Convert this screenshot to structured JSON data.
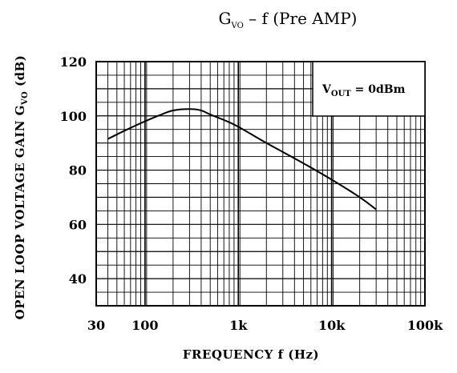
{
  "chart_data": {
    "type": "line",
    "title": {
      "prefix": "G",
      "subscript": "VO",
      "suffix": "  –  f (Pre AMP)"
    },
    "xlabel": "FREQUENCY  f  (Hz)",
    "ylabel": {
      "prefix": "OPEN LOOP VOLTAGE GAIN G",
      "subscript": "VO",
      "suffix": " (dB)"
    },
    "x_scale": "log",
    "xlim": [
      30,
      100000
    ],
    "ylim": [
      30,
      120
    ],
    "x_ticks": [
      {
        "value": 30,
        "label": "30"
      },
      {
        "value": 100,
        "label": "100"
      },
      {
        "value": 1000,
        "label": "1k"
      },
      {
        "value": 10000,
        "label": "10k"
      },
      {
        "value": 100000,
        "label": "100k"
      }
    ],
    "y_ticks": [
      {
        "value": 40,
        "label": "40"
      },
      {
        "value": 60,
        "label": "60"
      },
      {
        "value": 80,
        "label": "80"
      },
      {
        "value": 100,
        "label": "100"
      },
      {
        "value": 120,
        "label": "120"
      }
    ],
    "grid": true,
    "legend": {
      "placement": "top-right",
      "prefix": "V",
      "subscript": "OUT",
      "suffix": " = 0dBm"
    },
    "series": [
      {
        "x": [
          40,
          60,
          100,
          150,
          200,
          300,
          400,
          500,
          700,
          1000,
          2000,
          5000,
          10000,
          20000,
          30000
        ],
        "y": [
          91.5,
          94.5,
          98,
          100.5,
          102,
          102.5,
          102,
          100.5,
          98.5,
          96,
          90,
          82.5,
          76.5,
          70,
          65.5
        ]
      }
    ]
  }
}
